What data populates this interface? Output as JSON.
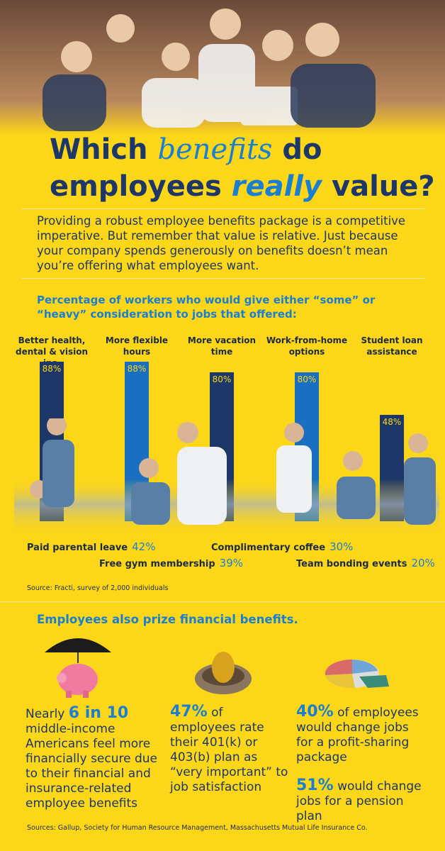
{
  "title": {
    "line1": [
      "Which",
      "benefits",
      "do"
    ],
    "line2": [
      "employees",
      "really",
      "value?"
    ]
  },
  "intro": "Providing a robust employee benefits package is a competitive imperative. But remember that value is relative. Just because your company spends generously on benefits doesn’t mean you’re offering what employees want.",
  "chart_data": {
    "type": "bar",
    "title": "Percentage of workers who would give either “some” or “heavy” consideration to jobs that offered:",
    "categories": [
      "Better health, dental & vision ins.",
      "More flexible hours",
      "More vacation time",
      "Work-from-home options",
      "Student loan assistance"
    ],
    "values": [
      88,
      88,
      80,
      80,
      48
    ],
    "value_labels": [
      "88%",
      "88%",
      "80%",
      "80%",
      "48%"
    ],
    "colors": [
      "#1d3768",
      "#1a6fc0",
      "#1d3768",
      "#1a6fc0",
      "#1d3768"
    ],
    "ylim": [
      0,
      100
    ]
  },
  "other_benefits": [
    {
      "label": "Paid parental leave",
      "value": "42%"
    },
    {
      "label": "Free gym membership",
      "value": "39%"
    },
    {
      "label": "Complimentary coffee",
      "value": "30%"
    },
    {
      "label": "Team bonding events",
      "value": "20%"
    }
  ],
  "source1": "Source: Fracti, survey of 2,000 individuals",
  "financial": {
    "heading": "Employees also prize financial benefits.",
    "items": [
      {
        "pre": "Nearly",
        "stat": "6 in 10",
        "text": "middle-income Americans feel more financially secure due to their financial and insurance-related employee benefits"
      },
      {
        "stat": "47%",
        "text": "of employees rate their 401(k) or 403(b) plan as “very important” to job satisfaction"
      },
      {
        "stat": "40%",
        "text": "of employees would change jobs for a profit-sharing package"
      },
      {
        "stat": "51%",
        "text": "would change jobs for a pension plan"
      }
    ]
  },
  "source2": "Sources: Gallup, Society for Human Resource Management, Massachusetts Mutual Life Insurance Co."
}
